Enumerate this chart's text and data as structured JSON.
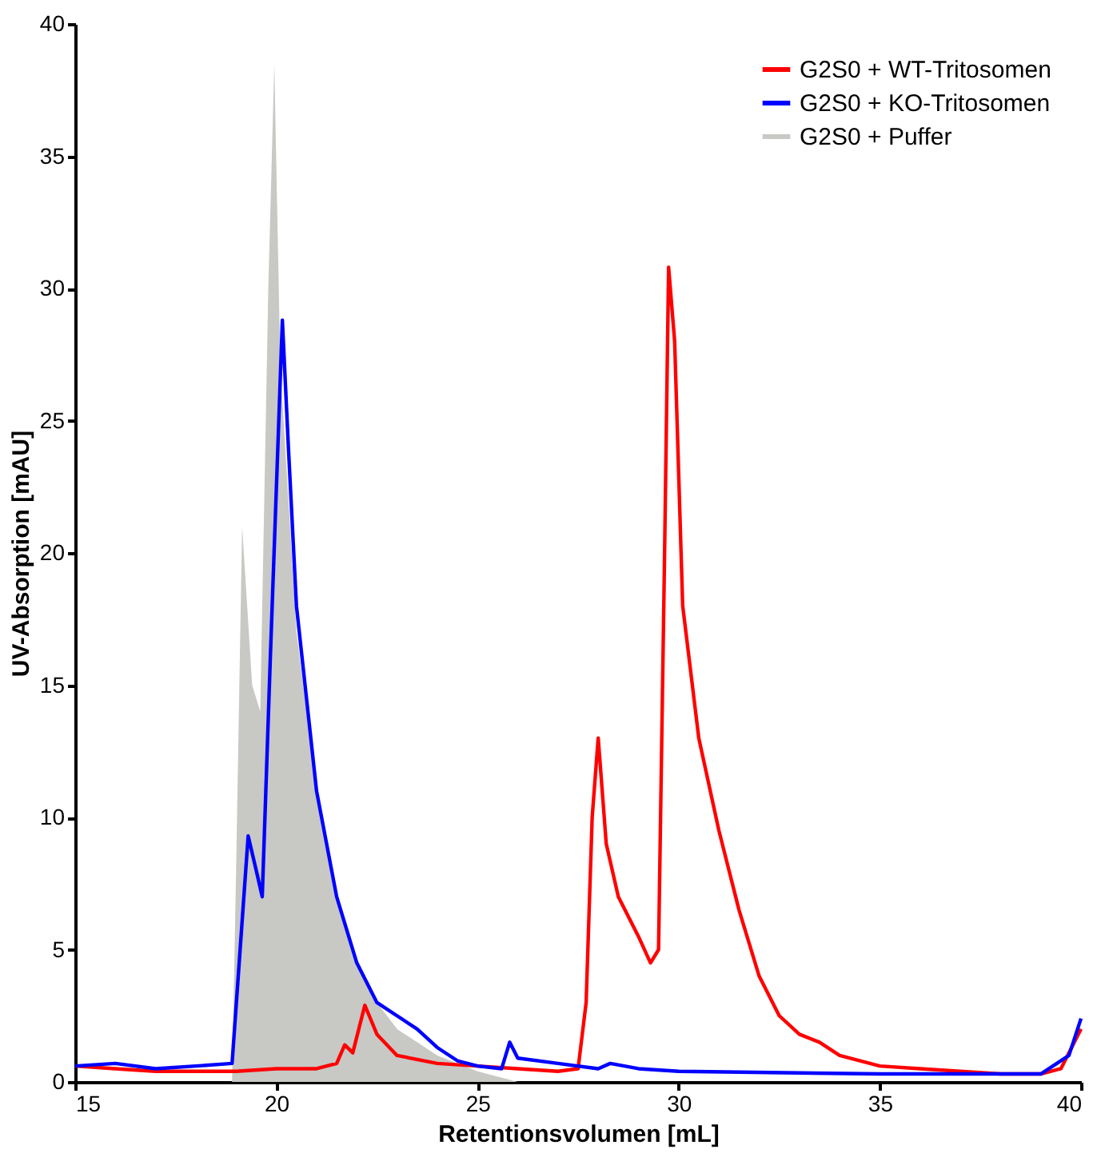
{
  "chart_data": {
    "type": "line",
    "xlabel": "Retentionsvolumen [mL]",
    "ylabel": "UV-Absorption [mAU]",
    "xlim": [
      15,
      40
    ],
    "xticks": [
      15,
      20,
      25,
      30,
      35,
      40
    ],
    "ylim": [
      0,
      40
    ],
    "yticks": [
      0,
      5,
      10,
      15,
      20,
      25,
      30,
      35,
      40
    ],
    "grid": false,
    "legend": "top right",
    "marker": "none",
    "line_style": "solid",
    "series": [
      {
        "name": "G2S0 + WT-Tritosomen",
        "color": "#ff0000",
        "x": [
          15,
          16,
          17,
          18,
          19,
          20,
          21,
          21.5,
          21.7,
          21.9,
          22.2,
          22.5,
          23,
          24,
          25,
          26,
          27,
          27.5,
          27.7,
          27.85,
          28.0,
          28.2,
          28.5,
          29,
          29.3,
          29.5,
          29.65,
          29.75,
          29.9,
          30.1,
          30.5,
          31,
          31.5,
          32,
          32.5,
          33,
          33.5,
          34,
          35,
          36,
          37,
          38,
          39,
          39.5,
          40
        ],
        "values": [
          0.6,
          0.5,
          0.4,
          0.4,
          0.4,
          0.5,
          0.5,
          0.7,
          1.4,
          1.1,
          2.9,
          1.8,
          1.0,
          0.7,
          0.6,
          0.5,
          0.4,
          0.5,
          3,
          10,
          13,
          9,
          7,
          5.5,
          4.5,
          5,
          20,
          30.8,
          28,
          18,
          13,
          9.5,
          6.5,
          4,
          2.5,
          1.8,
          1.5,
          1.0,
          0.6,
          0.5,
          0.4,
          0.3,
          0.3,
          0.5,
          2.0
        ]
      },
      {
        "name": "G2S0 + KO-Tritosomen",
        "color": "#0000ff",
        "x": [
          15,
          16,
          17,
          18,
          18.9,
          19.1,
          19.3,
          19.5,
          19.65,
          19.85,
          20.15,
          20.3,
          20.5,
          21,
          21.5,
          22,
          22.5,
          23,
          23.5,
          24,
          24.5,
          25,
          25.6,
          25.8,
          26,
          27,
          28,
          28.3,
          29,
          30,
          35,
          39,
          39.7,
          40
        ],
        "values": [
          0.6,
          0.7,
          0.5,
          0.6,
          0.7,
          5,
          9.3,
          8,
          7.0,
          16,
          28.8,
          24,
          18,
          11,
          7,
          4.5,
          3,
          2.5,
          2,
          1.3,
          0.8,
          0.6,
          0.5,
          1.5,
          0.9,
          0.7,
          0.5,
          0.7,
          0.5,
          0.4,
          0.3,
          0.3,
          1,
          2.4
        ]
      },
      {
        "name": "G2S0 + Puffer",
        "color": "#c8c8c4",
        "type": "area",
        "x": [
          15,
          18.9,
          19.0,
          19.15,
          19.4,
          19.6,
          19.8,
          19.95,
          20.1,
          20.3,
          20.5,
          21,
          21.5,
          22,
          22.5,
          23,
          23.5,
          24,
          25,
          26
        ],
        "values": [
          0,
          0,
          8,
          21,
          15,
          14,
          30,
          38.5,
          27,
          22,
          17,
          11,
          7,
          4.5,
          3,
          2,
          1.5,
          1,
          0.4,
          0
        ]
      }
    ]
  }
}
